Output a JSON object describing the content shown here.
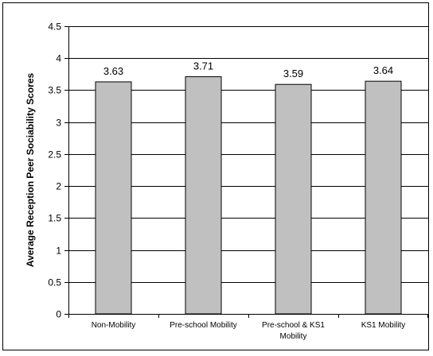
{
  "chart_data": {
    "type": "bar",
    "ylabel": "Average Reception Peer Sociability Scores",
    "xlabel": "",
    "ylim": [
      0,
      4.5
    ],
    "yticks": [
      "0",
      "0.5",
      "1",
      "1.5",
      "2",
      "2.5",
      "3",
      "3.5",
      "4",
      "4.5"
    ],
    "categories": [
      [
        "Non-Mobility"
      ],
      [
        "Pre-school Mobility"
      ],
      [
        "Pre-school & KS1",
        "Mobility"
      ],
      [
        "KS1 Mobility"
      ]
    ],
    "values": [
      3.63,
      3.71,
      3.59,
      3.64
    ],
    "value_labels": [
      "3.63",
      "3.71",
      "3.59",
      "3.64"
    ],
    "bar_color": "#c0c0c0",
    "grid": true,
    "legend": "none"
  }
}
